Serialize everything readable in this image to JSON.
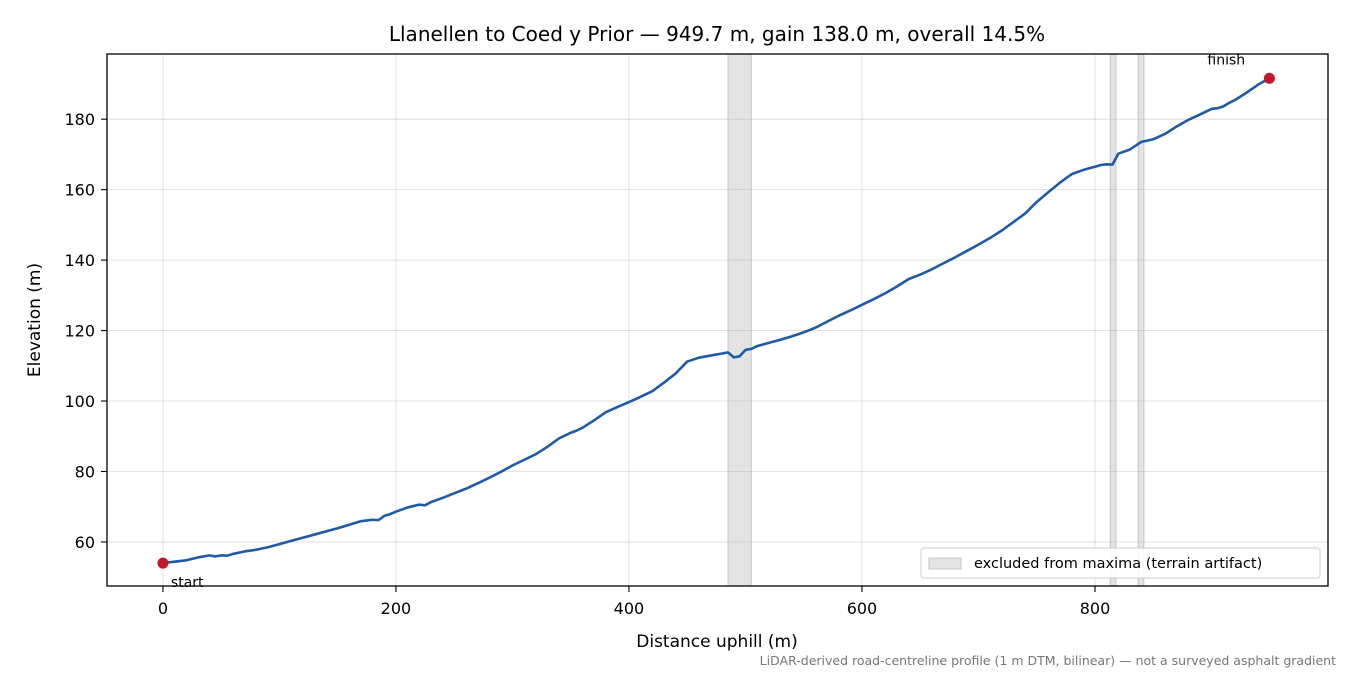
{
  "chart_data": {
    "type": "line",
    "title": "Llanellen to Coed y Prior — 949.7 m, gain 138.0 m, overall 14.5%",
    "xlabel": "Distance uphill (m)",
    "ylabel": "Elevation (m)",
    "xlim": [
      -48,
      1000
    ],
    "ylim": [
      47.5,
      198.5
    ],
    "xticks": [
      0,
      200,
      400,
      600,
      800
    ],
    "yticks": [
      60,
      80,
      100,
      120,
      140,
      160,
      180
    ],
    "grid": true,
    "line_color": "#1f5aa6",
    "marker_color": "#c0192b",
    "band_color": "#d9d9d9",
    "series": [
      {
        "x": [
          0,
          10,
          20,
          30,
          40,
          45,
          50,
          55,
          60,
          70,
          80,
          90,
          100,
          110,
          120,
          130,
          140,
          150,
          160,
          170,
          180,
          185,
          190,
          195,
          200,
          210,
          220,
          225,
          230,
          240,
          250,
          260,
          270,
          280,
          290,
          300,
          310,
          320,
          330,
          340,
          345,
          350,
          355,
          360,
          370,
          380,
          390,
          400,
          410,
          420,
          430,
          440,
          450,
          460,
          470,
          480,
          485,
          490,
          495,
          500,
          505,
          510,
          520,
          530,
          540,
          550,
          560,
          570,
          580,
          590,
          600,
          610,
          620,
          630,
          640,
          650,
          660,
          670,
          680,
          690,
          700,
          710,
          720,
          730,
          740,
          750,
          760,
          770,
          780,
          790,
          800,
          805,
          810,
          815,
          820,
          830,
          835,
          840,
          845,
          850,
          860,
          870,
          880,
          890,
          900,
          905,
          910,
          915,
          920,
          930,
          940,
          949.7
        ],
        "y": [
          54.0,
          54.4,
          54.8,
          55.6,
          56.2,
          55.9,
          56.2,
          56.1,
          56.6,
          57.3,
          57.8,
          58.5,
          59.4,
          60.3,
          61.2,
          62.1,
          63.0,
          63.9,
          64.9,
          65.9,
          66.3,
          66.2,
          67.4,
          67.9,
          68.6,
          69.8,
          70.6,
          70.4,
          71.3,
          72.5,
          73.8,
          75.1,
          76.6,
          78.2,
          79.9,
          81.7,
          83.3,
          84.9,
          87.0,
          89.4,
          90.2,
          91.0,
          91.6,
          92.4,
          94.5,
          96.8,
          98.3,
          99.7,
          101.2,
          102.8,
          105.2,
          107.8,
          111.2,
          112.3,
          112.9,
          113.5,
          113.8,
          112.4,
          112.7,
          114.5,
          114.8,
          115.6,
          116.5,
          117.4,
          118.4,
          119.5,
          120.8,
          122.5,
          124.2,
          125.7,
          127.3,
          128.9,
          130.6,
          132.5,
          134.6,
          135.9,
          137.4,
          139.1,
          140.8,
          142.6,
          144.4,
          146.3,
          148.4,
          150.8,
          153.2,
          156.5,
          159.3,
          162.0,
          164.4,
          165.6,
          166.5,
          167.0,
          167.2,
          167.1,
          170.2,
          171.4,
          172.5,
          173.6,
          173.9,
          174.3,
          175.8,
          177.9,
          179.8,
          181.3,
          182.9,
          183.1,
          183.6,
          184.6,
          185.4,
          187.5,
          189.8,
          191.6
        ]
      }
    ],
    "excluded_bands": [
      {
        "x0": 485,
        "x1": 505
      },
      {
        "x0": 813,
        "x1": 818
      },
      {
        "x0": 837,
        "x1": 842
      }
    ],
    "markers": [
      {
        "x": 0,
        "y": 54.0,
        "label": "start"
      },
      {
        "x": 949.7,
        "y": 191.6,
        "label": "finish"
      }
    ],
    "legend": {
      "location": "lower-right",
      "entries": [
        {
          "label": "excluded from maxima (terrain artifact)"
        }
      ]
    },
    "footnote": "LiDAR-derived road-centreline profile (1 m DTM, bilinear) — not a surveyed asphalt gradient"
  }
}
